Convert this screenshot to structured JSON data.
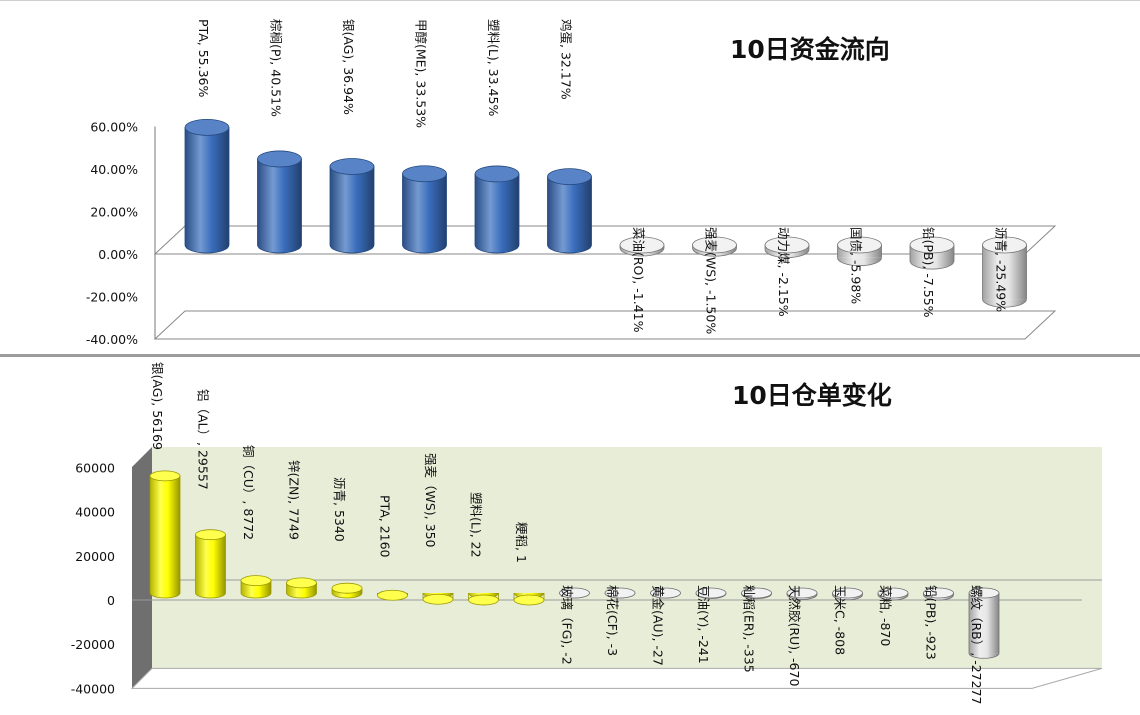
{
  "chart_data": [
    {
      "type": "bar",
      "title": "10日资金流向",
      "categories": [
        "PTA",
        "棕榈(P)",
        "银(AG)",
        "甲醇(ME)",
        "塑料(L)",
        "鸡蛋",
        "菜油(RO)",
        "强麦(WS)",
        "动力煤",
        "国债",
        "铅(PB)",
        "沥青"
      ],
      "values": [
        55.36,
        40.51,
        36.94,
        33.53,
        33.45,
        32.17,
        -1.41,
        -1.5,
        -2.15,
        -5.98,
        -7.55,
        -25.49
      ],
      "data_labels": [
        "PTA, 55.36%",
        "棕榈(P), 40.51%",
        "银(AG), 36.94%",
        "甲醇(ME), 33.53%",
        "塑料(L), 33.45%",
        "鸡蛋, 32.17%",
        "菜油(RO), -1.41%",
        "强麦(WS), -1.50%",
        "动力煤, -2.15%",
        "国债, -5.98%",
        "铅(PB), -7.55%",
        "沥青, -25.49%"
      ],
      "yticks": [
        "60.00%",
        "40.00%",
        "20.00%",
        "0.00%",
        "-20.00%",
        "-40.00%"
      ],
      "ylim": [
        -40,
        60
      ],
      "colors": {
        "positive": "#3a6ebd",
        "negative": "#e6e6e6"
      },
      "grid": false,
      "legend": "none"
    },
    {
      "type": "bar",
      "title": "10日仓单变化",
      "categories": [
        "银(AG)",
        "铝（AL）",
        "铜（CU）",
        "锌(ZN)",
        "沥青",
        "PTA",
        "强麦（WS)",
        "塑料(L)",
        "粳稻",
        "玻璃（FG)",
        "棉花(CF)",
        "黄金(AU)",
        "豆油(Y)",
        "籼稻(ER)",
        "天然胶(RU)",
        "玉米C",
        "菜粕",
        "铅(PB)",
        "螺纹（RB）"
      ],
      "values": [
        56169,
        29557,
        8772,
        7749,
        5340,
        2160,
        350,
        22,
        1,
        -2,
        -3,
        -27,
        -241,
        -335,
        -670,
        -808,
        -870,
        -923,
        -27277
      ],
      "data_labels": [
        "银(AG), 56169",
        "铝（AL）, 29557",
        "铜（CU）, 8772",
        "锌(ZN), 7749",
        "沥青, 5340",
        "PTA, 2160",
        "强麦（WS), 350",
        "塑料(L), 22",
        "粳稻, 1",
        "玻璃（FG), -2",
        "棉花(CF), -3",
        "黄金(AU), -27",
        "豆油(Y), -241",
        "籼稻(ER), -335",
        "天然胶(RU), -670",
        "玉米C, -808",
        "菜粕, -870",
        "铅(PB), -923",
        "螺纹（RB）, -27277"
      ],
      "yticks": [
        "60000",
        "40000",
        "20000",
        "0",
        "-20000",
        "-40000"
      ],
      "ylim": [
        -40000,
        60000
      ],
      "colors": {
        "positive": "#ffff00",
        "negative": "#e6e6e6",
        "wall": "#e8edd8"
      },
      "grid": false,
      "legend": "none"
    }
  ]
}
